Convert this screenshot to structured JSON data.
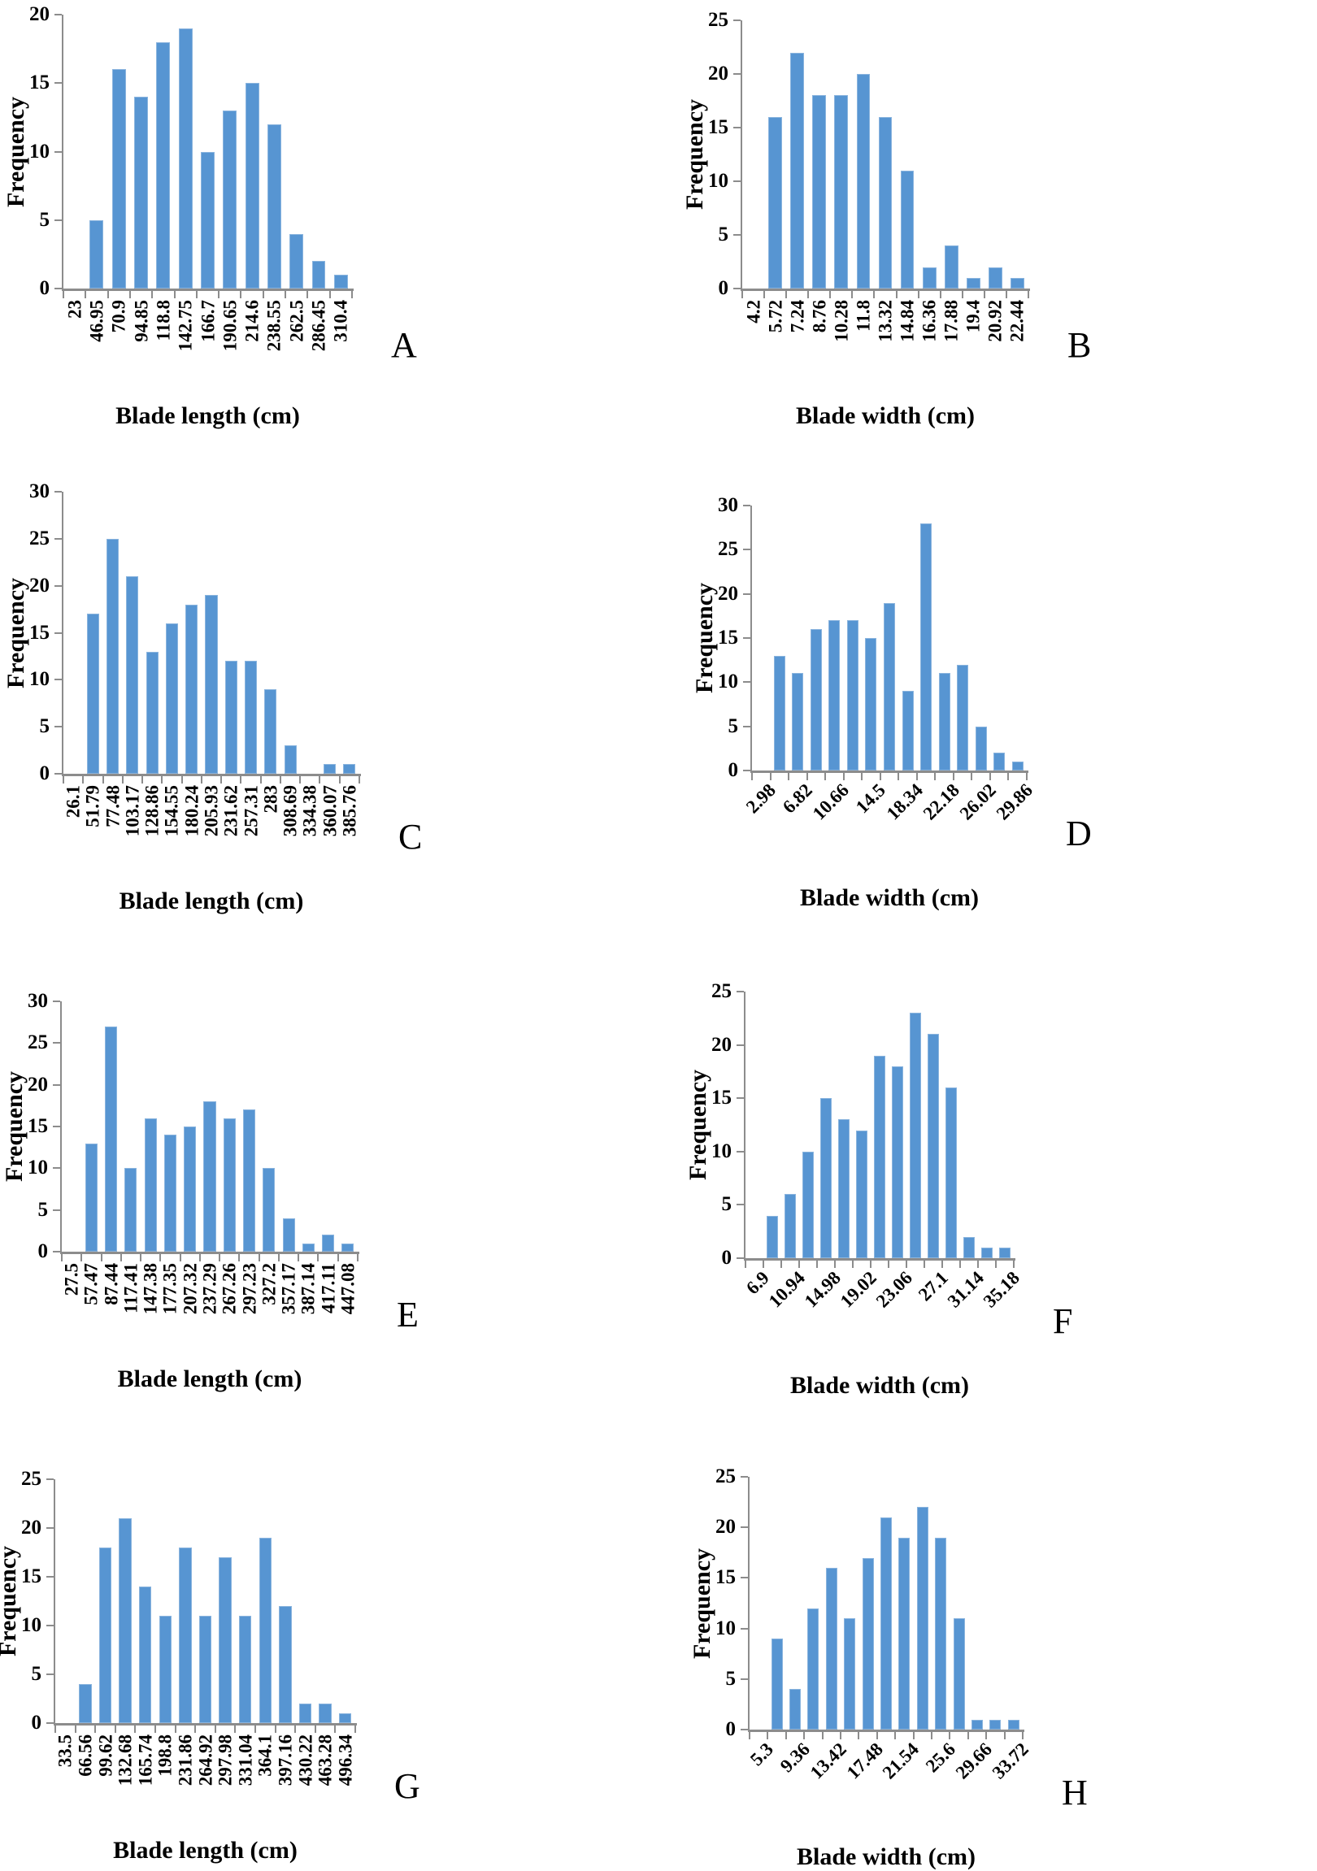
{
  "page": {
    "background": "#ffffff"
  },
  "colors": {
    "bar_fill": "#5795D2",
    "bar_border": "#8AB4DE",
    "axis_line": "#8C8C8C",
    "text": "#000000"
  },
  "chart_data": [
    {
      "type": "bar",
      "panel": "A",
      "xlabel": "Blade length (cm)",
      "ylabel": "Frequency",
      "ylim": [
        0,
        20
      ],
      "ytick_step": 5,
      "grid": false,
      "legend": "none",
      "n_slots": 13,
      "label_every": 1,
      "label_rotation": 90,
      "x_tick_labels": [
        "23",
        "46.95",
        "70.9",
        "94.85",
        "118.8",
        "142.75",
        "166.7",
        "190.65",
        "214.6",
        "238.55",
        "262.5",
        "286.45",
        "310.4"
      ],
      "values": [
        0,
        5,
        16,
        14,
        18,
        19,
        10,
        13,
        15,
        12,
        4,
        2,
        1
      ]
    },
    {
      "type": "bar",
      "panel": "B",
      "xlabel": "Blade width (cm)",
      "ylabel": "Frequency",
      "ylim": [
        0,
        25
      ],
      "ytick_step": 5,
      "grid": false,
      "legend": "none",
      "n_slots": 13,
      "label_every": 1,
      "label_rotation": 90,
      "x_tick_labels": [
        "4.2",
        "5.72",
        "7.24",
        "8.76",
        "10.28",
        "11.8",
        "13.32",
        "14.84",
        "16.36",
        "17.88",
        "19.4",
        "20.92",
        "22.44"
      ],
      "values": [
        0,
        16,
        22,
        18,
        18,
        20,
        16,
        11,
        2,
        4,
        1,
        2,
        1
      ]
    },
    {
      "type": "bar",
      "panel": "C",
      "xlabel": "Blade length (cm)",
      "ylabel": "Frequency",
      "ylim": [
        0,
        30
      ],
      "ytick_step": 5,
      "grid": false,
      "legend": "none",
      "n_slots": 15,
      "label_every": 1,
      "label_rotation": 90,
      "x_tick_labels": [
        "26.1",
        "51.79",
        "77.48",
        "103.17",
        "128.86",
        "154.55",
        "180.24",
        "205.93",
        "231.62",
        "257.31",
        "283",
        "308.69",
        "334.38",
        "360.07",
        "385.76"
      ],
      "values": [
        0,
        17,
        25,
        21,
        13,
        16,
        18,
        19,
        12,
        12,
        9,
        3,
        0,
        1,
        1
      ]
    },
    {
      "type": "bar",
      "panel": "D",
      "xlabel": "Blade width (cm)",
      "ylabel": "Frequency",
      "ylim": [
        0,
        30
      ],
      "ytick_step": 5,
      "grid": false,
      "legend": "none",
      "n_slots": 15,
      "label_every": 2,
      "label_rotation": 45,
      "x_tick_labels": [
        "2.98",
        "6.82",
        "10.66",
        "14.5",
        "18.34",
        "22.18",
        "26.02",
        "29.86"
      ],
      "values": [
        0,
        13,
        11,
        16,
        17,
        17,
        15,
        19,
        9,
        28,
        11,
        12,
        5,
        2,
        1
      ]
    },
    {
      "type": "bar",
      "panel": "E",
      "xlabel": "Blade length (cm)",
      "ylabel": "Frequency",
      "ylim": [
        0,
        30
      ],
      "ytick_step": 5,
      "grid": false,
      "legend": "none",
      "n_slots": 15,
      "label_every": 1,
      "label_rotation": 90,
      "x_tick_labels": [
        "27.5",
        "57.47",
        "87.44",
        "117.41",
        "147.38",
        "177.35",
        "207.32",
        "237.29",
        "267.26",
        "297.23",
        "327.2",
        "357.17",
        "387.14",
        "417.11",
        "447.08"
      ],
      "values": [
        0,
        13,
        27,
        10,
        16,
        14,
        15,
        18,
        16,
        17,
        10,
        4,
        1,
        2,
        1
      ]
    },
    {
      "type": "bar",
      "panel": "F",
      "xlabel": "Blade width (cm)",
      "ylabel": "Frequency",
      "ylim": [
        0,
        25
      ],
      "ytick_step": 5,
      "grid": false,
      "legend": "none",
      "n_slots": 15,
      "label_every": 2,
      "label_rotation": 45,
      "x_tick_labels": [
        "6.9",
        "10.94",
        "14.98",
        "19.02",
        "23.06",
        "27.1",
        "31.14",
        "35.18"
      ],
      "values": [
        0,
        4,
        6,
        10,
        15,
        13,
        12,
        19,
        18,
        23,
        21,
        16,
        2,
        1,
        1
      ]
    },
    {
      "type": "bar",
      "panel": "G",
      "xlabel": "Blade length (cm)",
      "ylabel": "Frequency",
      "ylim": [
        0,
        25
      ],
      "ytick_step": 5,
      "grid": false,
      "legend": "none",
      "n_slots": 15,
      "label_every": 1,
      "label_rotation": 90,
      "x_tick_labels": [
        "33.5",
        "66.56",
        "99.62",
        "132.68",
        "165.74",
        "198.8",
        "231.86",
        "264.92",
        "297.98",
        "331.04",
        "364.1",
        "397.16",
        "430.22",
        "463.28",
        "496.34"
      ],
      "values": [
        0,
        4,
        18,
        21,
        14,
        11,
        18,
        11,
        17,
        11,
        19,
        12,
        2,
        2,
        1
      ]
    },
    {
      "type": "bar",
      "panel": "H",
      "xlabel": "Blade width (cm)",
      "ylabel": "Frequency",
      "ylim": [
        0,
        25
      ],
      "ytick_step": 5,
      "grid": false,
      "legend": "none",
      "n_slots": 15,
      "label_every": 2,
      "label_rotation": 45,
      "x_tick_labels": [
        "5.3",
        "9.36",
        "13.42",
        "17.48",
        "21.54",
        "25.6",
        "29.66",
        "33.72"
      ],
      "values": [
        0,
        9,
        4,
        12,
        16,
        11,
        17,
        21,
        19,
        22,
        19,
        11,
        1,
        1,
        1
      ]
    }
  ]
}
